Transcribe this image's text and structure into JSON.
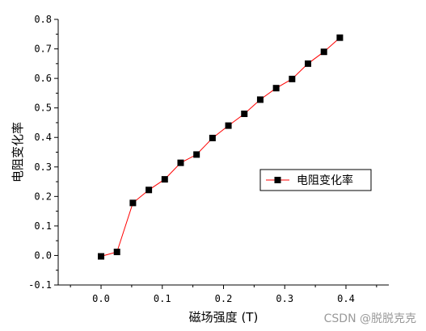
{
  "chart_data": {
    "type": "line",
    "xlabel": "磁场强度 (T)",
    "ylabel": "电阻变化率",
    "xlim": [
      -0.07,
      0.47
    ],
    "ylim": [
      -0.1,
      0.8
    ],
    "x_ticks": [
      "0.0",
      "0.1",
      "0.2",
      "0.3",
      "0.4"
    ],
    "x_tick_values": [
      0.0,
      0.1,
      0.2,
      0.3,
      0.4
    ],
    "y_ticks": [
      "-0.1",
      "0.0",
      "0.1",
      "0.2",
      "0.3",
      "0.4",
      "0.5",
      "0.6",
      "0.7",
      "0.8"
    ],
    "y_tick_values": [
      -0.1,
      0.0,
      0.1,
      0.2,
      0.3,
      0.4,
      0.5,
      0.6,
      0.7,
      0.8
    ],
    "legend_position": "right-middle",
    "series": [
      {
        "name": "电阻变化率",
        "color": "#ff0000",
        "marker": "square",
        "marker_color": "#000000",
        "x": [
          0.0,
          0.026,
          0.052,
          0.078,
          0.104,
          0.13,
          0.156,
          0.182,
          0.208,
          0.234,
          0.26,
          0.286,
          0.312,
          0.338,
          0.364,
          0.39
        ],
        "y": [
          -0.003,
          0.012,
          0.178,
          0.222,
          0.258,
          0.314,
          0.342,
          0.398,
          0.44,
          0.48,
          0.528,
          0.567,
          0.598,
          0.65,
          0.69,
          0.738
        ]
      }
    ],
    "watermark": "CSDN @脱脱克克"
  }
}
